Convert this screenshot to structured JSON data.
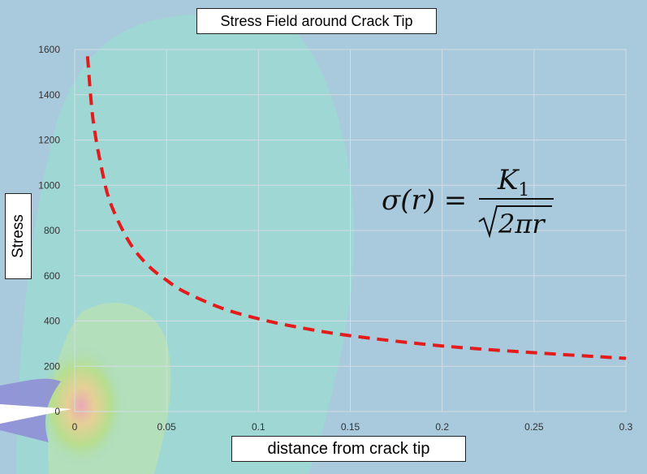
{
  "chart_data": {
    "type": "line",
    "title": "Stress Field around Crack Tip",
    "xlabel": "distance from crack tip",
    "ylabel": "Stress",
    "xlim": [
      0,
      0.3
    ],
    "ylim": [
      0,
      1600
    ],
    "x_ticks": [
      "0",
      "0.05",
      "0.1",
      "0.15",
      "0.2",
      "0.25",
      "0.3"
    ],
    "y_ticks": [
      "0",
      "200",
      "400",
      "600",
      "800",
      "1000",
      "1200",
      "1400",
      "1600"
    ],
    "grid": true,
    "series": [
      {
        "color": "#e31b1b",
        "style": "dashed",
        "x": [
          0.007,
          0.01,
          0.015,
          0.02,
          0.03,
          0.04,
          0.05,
          0.06,
          0.08,
          0.1,
          0.12,
          0.15,
          0.2,
          0.25,
          0.3
        ],
        "y": [
          1570,
          1290,
          1060,
          910,
          745,
          645,
          580,
          528,
          457,
          410,
          375,
          335,
          290,
          260,
          235
        ]
      }
    ],
    "annotation": {
      "lhs": "σ(r) =",
      "numerator": "K",
      "numerator_sub": "1",
      "denominator": "2πr"
    }
  }
}
